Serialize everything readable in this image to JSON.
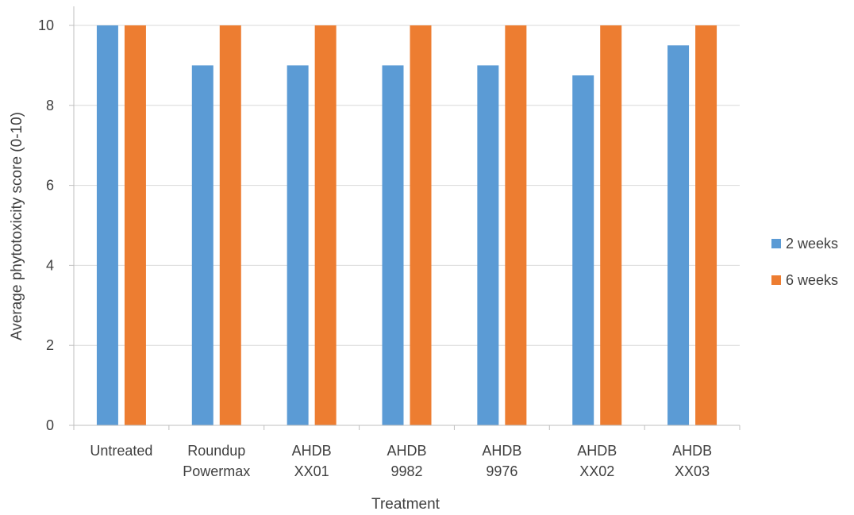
{
  "chart_data": {
    "type": "bar",
    "title": "",
    "xlabel": "Treatment",
    "ylabel": "Average phytotoxicity score (0-10)",
    "ylim": [
      0,
      10
    ],
    "yticks": [
      "0",
      "2",
      "4",
      "6",
      "8",
      "10"
    ],
    "categories": [
      [
        "Untreated"
      ],
      [
        "Roundup",
        "Powermax"
      ],
      [
        "AHDB",
        "XX01"
      ],
      [
        "AHDB",
        "9982"
      ],
      [
        "AHDB",
        "9976"
      ],
      [
        "AHDB",
        "XX02"
      ],
      [
        "AHDB",
        "XX03"
      ]
    ],
    "series": [
      {
        "name": "2 weeks",
        "color": "#5b9bd5",
        "values": [
          10,
          9,
          9,
          9,
          9,
          8.75,
          9.5
        ]
      },
      {
        "name": "6 weeks",
        "color": "#ed7d31",
        "values": [
          10,
          10,
          10,
          10,
          10,
          10,
          10
        ]
      }
    ],
    "grid": true,
    "legend_position": "right"
  }
}
